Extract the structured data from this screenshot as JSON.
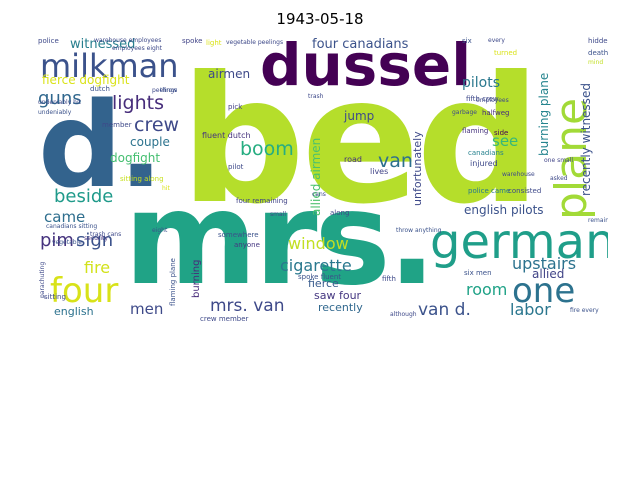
{
  "title": "1943-05-18",
  "words": [
    {
      "text": "bed",
      "color": "#b5de2b"
    },
    {
      "text": "mrs.",
      "color": "#20a386"
    },
    {
      "text": "d.",
      "color": "#33638d"
    },
    {
      "text": "dussel",
      "color": "#440154"
    },
    {
      "text": "german",
      "color": "#1f9e89"
    },
    {
      "text": "plane",
      "color": "#a2da37"
    },
    {
      "text": "one",
      "color": "#2c728e"
    },
    {
      "text": "four",
      "color": "#d8e219"
    },
    {
      "text": "milkman",
      "color": "#3b528b"
    },
    {
      "text": "lights",
      "color": "#472d7b"
    },
    {
      "text": "crew",
      "color": "#3e4989"
    },
    {
      "text": "boom",
      "color": "#26ad81"
    },
    {
      "text": "guns",
      "color": "#31688e"
    },
    {
      "text": "van",
      "color": "#2d708e"
    },
    {
      "text": "pim",
      "color": "#46337e"
    },
    {
      "text": "sign",
      "color": "#3b528b"
    },
    {
      "text": "beside",
      "color": "#1f9a8a"
    },
    {
      "text": "window",
      "color": "#c2df23"
    },
    {
      "text": "cigarette",
      "color": "#2a788e"
    },
    {
      "text": "upstairs",
      "color": "#2c728e"
    },
    {
      "text": "room",
      "color": "#1fa287"
    },
    {
      "text": "van d.",
      "color": "#3b528b"
    },
    {
      "text": "mrs. van",
      "color": "#3e4989"
    },
    {
      "text": "labor",
      "color": "#2a768e"
    },
    {
      "text": "fire",
      "color": "#d2e21b"
    },
    {
      "text": "came",
      "color": "#2e6e8e"
    },
    {
      "text": "men",
      "color": "#3e4a89"
    },
    {
      "text": "pilots",
      "color": "#2a788e"
    },
    {
      "text": "fierce dogfight",
      "color": "#dae319"
    },
    {
      "text": "witnessed",
      "color": "#277f8e"
    },
    {
      "text": "four canadians",
      "color": "#3b528b"
    },
    {
      "text": "airmen",
      "color": "#3e4989"
    },
    {
      "text": "dogfight",
      "color": "#44bf70"
    },
    {
      "text": "couple",
      "color": "#2c738e"
    },
    {
      "text": "see",
      "color": "#37b878"
    },
    {
      "text": "jump",
      "color": "#3e4c8a"
    },
    {
      "text": "english pilots",
      "color": "#3b528b"
    },
    {
      "text": "allied",
      "color": "#414487"
    },
    {
      "text": "saw four",
      "color": "#453781"
    },
    {
      "text": "fierce",
      "color": "#375a8c"
    },
    {
      "text": "recently",
      "color": "#31688e"
    },
    {
      "text": "english",
      "color": "#2c728e"
    },
    {
      "text": "burning plane",
      "color": "#25848e"
    },
    {
      "text": "recently witnessed",
      "color": "#3b528b"
    },
    {
      "text": "allied airmen",
      "color": "#4ac16d"
    },
    {
      "text": "unfortunately",
      "color": "#3e4989"
    },
    {
      "text": "burning",
      "color": "#472a7a"
    },
    {
      "text": "injured",
      "color": "#3e4989"
    },
    {
      "text": "road",
      "color": "#46327e"
    },
    {
      "text": "lives",
      "color": "#414487"
    },
    {
      "text": "fluent dutch",
      "color": "#46337e"
    },
    {
      "text": "crew member",
      "color": "#3e4989"
    },
    {
      "text": "pick",
      "color": "#424086"
    },
    {
      "text": "pilot",
      "color": "#3e4989"
    },
    {
      "text": "somewhere",
      "color": "#3b528b"
    },
    {
      "text": "anyone",
      "color": "#453781"
    },
    {
      "text": "sitting along",
      "color": "#c8e020"
    },
    {
      "text": "police",
      "color": "#3e4989"
    },
    {
      "text": "spoke",
      "color": "#414487"
    },
    {
      "text": "light",
      "color": "#dae319"
    },
    {
      "text": "dutch",
      "color": "#3b528b"
    },
    {
      "text": "member",
      "color": "#3e4989"
    },
    {
      "text": "halfweg",
      "color": "#472d7b"
    },
    {
      "text": "fifth crew",
      "color": "#3e4989"
    },
    {
      "text": "hidden",
      "color": "#3e4989"
    },
    {
      "text": "turned",
      "color": "#dae319"
    },
    {
      "text": "death",
      "color": "#3b528b"
    },
    {
      "text": "side",
      "color": "#440154"
    },
    {
      "text": "flaming",
      "color": "#46337e"
    },
    {
      "text": "four remaining",
      "color": "#414487"
    },
    {
      "text": "spoke fluent",
      "color": "#3b528b"
    },
    {
      "text": "fifth",
      "color": "#3e4989"
    },
    {
      "text": "six men",
      "color": "#3b528b"
    },
    {
      "text": "canadians",
      "color": "#26828e"
    },
    {
      "text": "police came",
      "color": "#2a788e"
    },
    {
      "text": "consisted",
      "color": "#3e4989"
    },
    {
      "text": "sitting",
      "color": "#3e4989"
    },
    {
      "text": "flaming plane",
      "color": "#3b528b"
    },
    {
      "text": "along",
      "color": "#3e4989"
    },
    {
      "text": "six",
      "color": "#3b528b"
    },
    {
      "text": "employees",
      "color": "#3e4989"
    },
    {
      "text": "although",
      "color": "#3e4989"
    },
    {
      "text": "fire every",
      "color": "#3b528b"
    },
    {
      "text": "parachuting",
      "color": "#3e4989"
    },
    {
      "text": "security",
      "color": "#46337e"
    },
    {
      "text": "canadians sitting",
      "color": "#3b528b"
    },
    {
      "text": "trash cans",
      "color": "#3e4989"
    },
    {
      "text": "eight",
      "color": "#3b528b"
    },
    {
      "text": "asked",
      "color": "#3e4989"
    },
    {
      "text": "one small",
      "color": "#414487"
    },
    {
      "text": "warehouse",
      "color": "#3e4989"
    },
    {
      "text": "remaining",
      "color": "#3b528b"
    },
    {
      "text": "vegetable peelings",
      "color": "#3e4989"
    },
    {
      "text": "garbage",
      "color": "#3e4989"
    },
    {
      "text": "undeniably",
      "color": "#3b528b"
    },
    {
      "text": "every",
      "color": "#3e4989"
    },
    {
      "text": "mind",
      "color": "#c2df23"
    },
    {
      "text": "peelings",
      "color": "#3e4989"
    },
    {
      "text": "vegetable",
      "color": "#3b528b"
    },
    {
      "text": "trash",
      "color": "#3e4989"
    },
    {
      "text": "cans",
      "color": "#3e4989"
    },
    {
      "text": "throw",
      "color": "#3b528b"
    },
    {
      "text": "employees eight",
      "color": "#3e4989"
    },
    {
      "text": "small",
      "color": "#3e4989"
    },
    {
      "text": "hit",
      "color": "#dae319"
    },
    {
      "text": "throw anything",
      "color": "#3b528b"
    },
    {
      "text": "warehouse employees",
      "color": "#3e4989"
    },
    {
      "text": "undeniably hit",
      "color": "#3e4989"
    }
  ]
}
